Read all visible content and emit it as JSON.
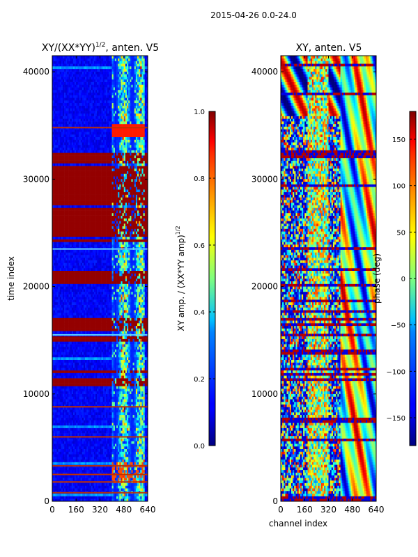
{
  "figure": {
    "suptitle": "2015-04-26 0.0-24.0",
    "accent_colors": {
      "jet_low": "#00007f",
      "jet_mid": "#7fff7f",
      "jet_high": "#7f0000",
      "frame": "#000000",
      "background": "#ffffff"
    }
  },
  "chart_data": [
    {
      "type": "heatmap",
      "title": "XY/(XX*YY)^1/2, anten. V5",
      "title_main": "XY/(XX*YY)",
      "title_exp": "1/2",
      "title_tail": ", anten. V5",
      "xlabel": "",
      "ylabel": "time index",
      "xlim": [
        0,
        640
      ],
      "ylim": [
        0,
        41500
      ],
      "x_ticks": [
        0,
        160,
        320,
        480,
        640
      ],
      "y_ticks": [
        0,
        10000,
        20000,
        30000,
        40000
      ],
      "colormap": "jet",
      "colorbar": {
        "label": "XY amp. / (XX*YY amp)^1/2",
        "label_main": "XY amp. / (XX*YY amp)",
        "label_exp": "1/2",
        "vmin": 0.0,
        "vmax": 1.0,
        "ticks": [
          0.0,
          0.2,
          0.4,
          0.6,
          0.8,
          1.0
        ],
        "tick_labels": [
          "0.0",
          "0.2",
          "0.4",
          "0.6",
          "0.8",
          "1.0"
        ]
      },
      "bright_channel_range": [
        400,
        620
      ],
      "saturated_time_bands": [
        [
          10500,
          12200
        ],
        [
          14800,
          17200
        ],
        [
          20300,
          21400
        ],
        [
          24200,
          32400
        ]
      ],
      "notable_rows": [
        800,
        1800,
        2500,
        3300,
        6000,
        8800,
        15500,
        23500,
        34800
      ]
    },
    {
      "type": "heatmap",
      "title": "XY, anten. V5",
      "xlabel": "channel index",
      "ylabel": "",
      "xlim": [
        0,
        640
      ],
      "ylim": [
        0,
        41500
      ],
      "x_ticks": [
        0,
        160,
        320,
        480,
        640
      ],
      "y_ticks": [
        0,
        10000,
        20000,
        30000,
        40000
      ],
      "colormap": "jet",
      "colorbar": {
        "label": "phase (deg)",
        "vmin": -180,
        "vmax": 180,
        "ticks": [
          -150,
          -100,
          -50,
          0,
          50,
          100,
          150
        ],
        "tick_labels": [
          "−150",
          "−100",
          "−50",
          "0",
          "50",
          "100",
          "150"
        ]
      },
      "band_channel_range": [
        180,
        320
      ],
      "structured_channel_range": [
        400,
        640
      ]
    }
  ]
}
